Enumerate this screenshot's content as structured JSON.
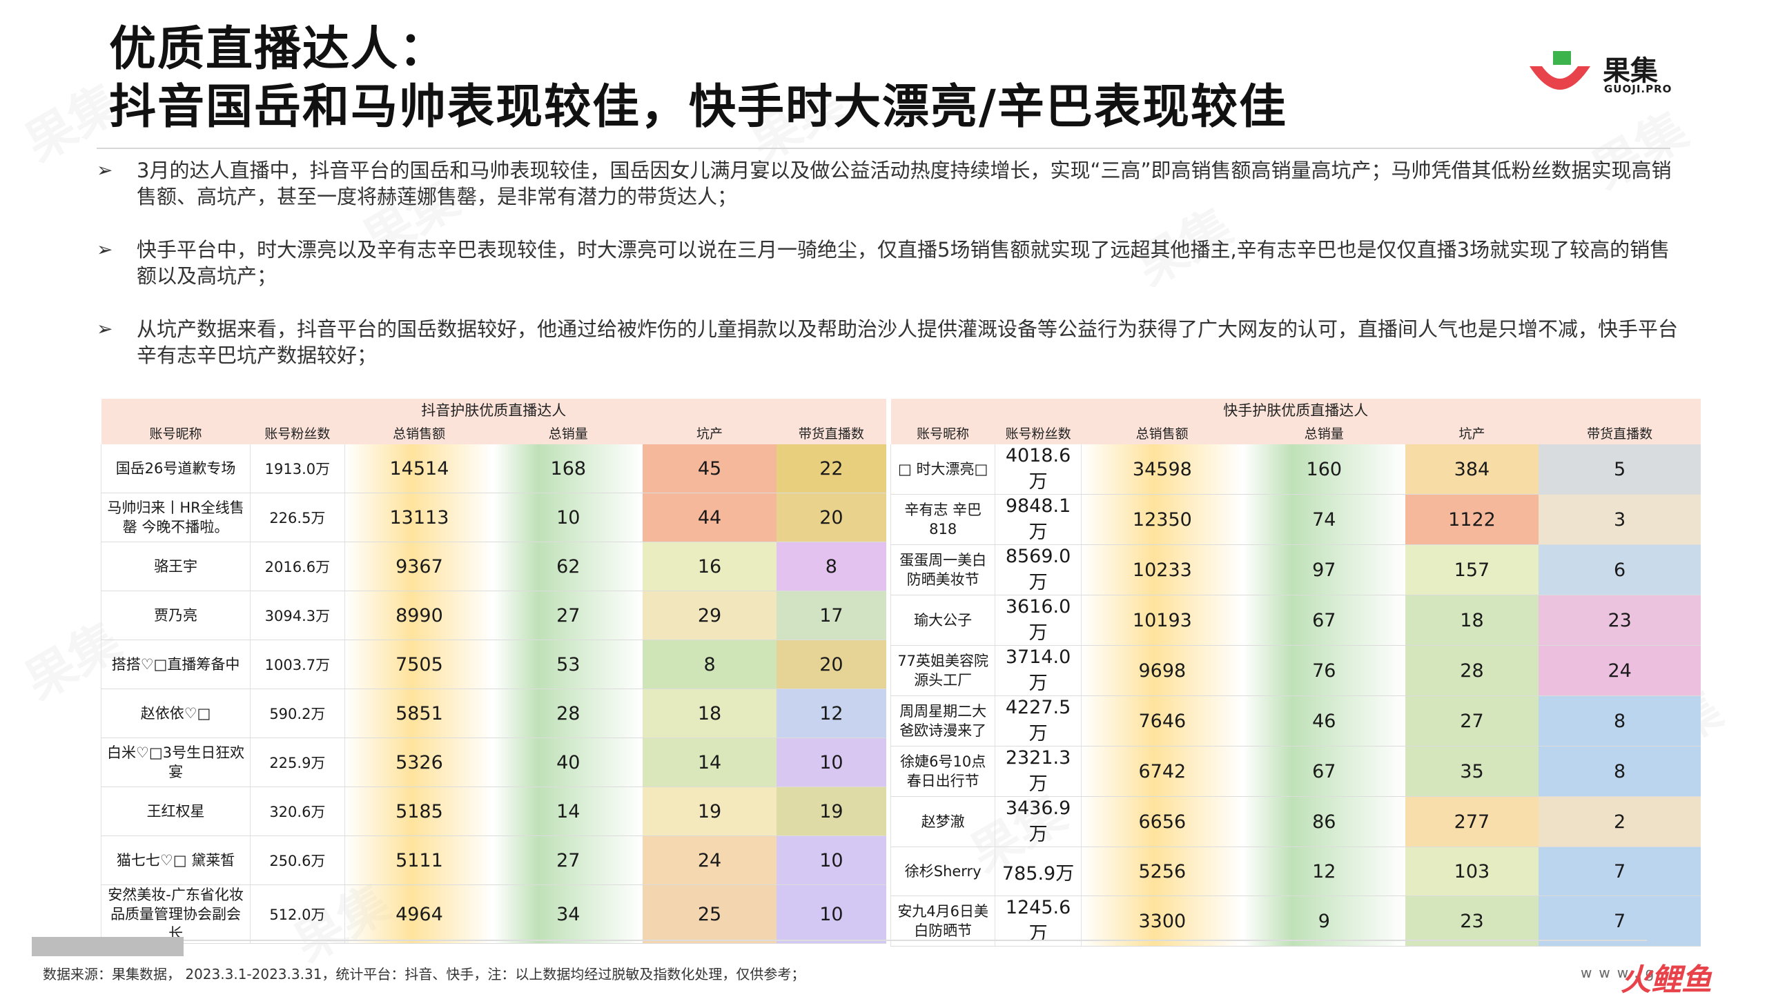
{
  "title": {
    "line1": "优质直播达人：",
    "line2": "抖音国岳和马帅表现较佳，快手时大漂亮/辛巴表现较佳"
  },
  "logo": {
    "cn": "果集",
    "en": "GUOJI.PRO",
    "colors": {
      "green": "#3cb44b",
      "red": "#e8434a"
    }
  },
  "watermark_text": "果集",
  "bullets": [
    "3月的达人直播中，抖音平台的国岳和马帅表现较佳，国岳因女儿满月宴以及做公益活动热度持续增长，实现“三高”即高销售额高销量高坑产；马帅凭借其低粉丝数据实现高销售额、高坑产，甚至一度将赫莲娜售罄，是非常有潜力的带货达人；",
    "快手平台中，时大漂亮以及辛有志辛巴表现较佳，时大漂亮可以说在三月一骑绝尘，仅直播5场销售额就实现了远超其他播主,辛有志辛巴也是仅仅直播3场就实现了较高的销售额以及高坑产；",
    "从坑产数据来看，抖音平台的国岳数据较好，他通过给被炸伤的儿童捐款以及帮助治沙人提供灌溉设备等公益行为获得了广大网友的认可，直播间人气也是只增不减，快手平台辛有志辛巴坑产数据较好；"
  ],
  "bullet_icon": "arrow-right-icon",
  "tables": [
    {
      "title": "抖音护肤优质直播达人",
      "headers": [
        "账号昵称",
        "账号粉丝数",
        "总销售额",
        "总销量",
        "坑产",
        "带货直播数"
      ],
      "rows": [
        [
          "国岳26号道歉专场",
          "1913.0万",
          "14514",
          "168",
          "45",
          "22"
        ],
        [
          "马帅归来丨HR全线售罄 今晚不播啦。",
          "226.5万",
          "13113",
          "10",
          "44",
          "20"
        ],
        [
          "骆王宇",
          "2016.6万",
          "9367",
          "62",
          "16",
          "8"
        ],
        [
          "贾乃亮",
          "3094.3万",
          "8990",
          "27",
          "29",
          "17"
        ],
        [
          "搭搭♡□直播筹备中",
          "1003.7万",
          "7505",
          "53",
          "8",
          "20"
        ],
        [
          "赵依依♡□",
          "590.2万",
          "5851",
          "28",
          "18",
          "12"
        ],
        [
          "白米♡□3号生日狂欢宴",
          "225.9万",
          "5326",
          "40",
          "14",
          "10"
        ],
        [
          "王红权星",
          "320.6万",
          "5185",
          "14",
          "19",
          "19"
        ],
        [
          "猫七七♡□ 黛莱皙",
          "250.6万",
          "5111",
          "27",
          "24",
          "10"
        ],
        [
          "安然美妆-广东省化妆品质量管理协会副会长",
          "512.0万",
          "4964",
          "34",
          "25",
          "10"
        ]
      ],
      "kengchan_colors": [
        "#f5b89a",
        "#f5b89a",
        "#e9edbf",
        "#f1e6bc",
        "#cfe5b7",
        "#e6ebbf",
        "#d9e7bb",
        "#f3e9bd",
        "#f5d8b0",
        "#f3d6b0"
      ],
      "live_colors": [
        "#e8cf7e",
        "#e9d28c",
        "#e4c2f0",
        "#d2e3c4",
        "#e6d496",
        "#c8d3ef",
        "#d8c8f1",
        "#dedba6",
        "#d5c8f3",
        "#d3c8f3"
      ]
    },
    {
      "title": "快手护肤优质直播达人",
      "headers": [
        "账号昵称",
        "账号粉丝数",
        "总销售额",
        "总销量",
        "坑产",
        "带货直播数"
      ],
      "rows": [
        [
          "□ 时大漂亮□",
          "4018.6万",
          "34598",
          "160",
          "384",
          "5"
        ],
        [
          "辛有志 辛巴 818",
          "9848.1万",
          "12350",
          "74",
          "1122",
          "3"
        ],
        [
          "蛋蛋周一美白防晒美妆节",
          "8569.0万",
          "10233",
          "97",
          "157",
          "6"
        ],
        [
          "瑜大公子",
          "3616.0万",
          "10193",
          "67",
          "18",
          "23"
        ],
        [
          "77英姐美容院源头工厂",
          "3714.0万",
          "9698",
          "76",
          "28",
          "24"
        ],
        [
          "周周星期二大爸欧诗漫来了",
          "4227.5万",
          "7646",
          "46",
          "27",
          "8"
        ],
        [
          "徐婕6号10点春日出行节",
          "2321.3万",
          "6742",
          "67",
          "35",
          "8"
        ],
        [
          "赵梦澈",
          "3436.9万",
          "6656",
          "86",
          "277",
          "2"
        ],
        [
          "徐杉Sherry",
          "785.9万",
          "5256",
          "12",
          "103",
          "7"
        ],
        [
          "安九4月6日美白防晒节",
          "1245.6万",
          "3300",
          "9",
          "23",
          "7"
        ]
      ],
      "kengchan_colors": [
        "#f8dca6",
        "#f5b89a",
        "#e8eec3",
        "#d3e6bd",
        "#d5e6bd",
        "#d5e6bd",
        "#d5e6bd",
        "#f8deaa",
        "#e5ecc1",
        "#d5e6bd"
      ],
      "live_colors": [
        "#d8dcdf",
        "#eee3cf",
        "#c9daeb",
        "#ecc3df",
        "#ecbfdf",
        "#bcd5ef",
        "#bcd5ef",
        "#eee1c8",
        "#bcd5ef",
        "#bcd5ef"
      ]
    }
  ],
  "footer": {
    "source": "数据来源：果集数据， 2023.3.1-2023.3.31，统计平台：抖音、快手，注：以上数据均经过脱敏及指数化处理，仅供参考；",
    "site": "www.g",
    "corner_logo": "火鲤鱼"
  }
}
